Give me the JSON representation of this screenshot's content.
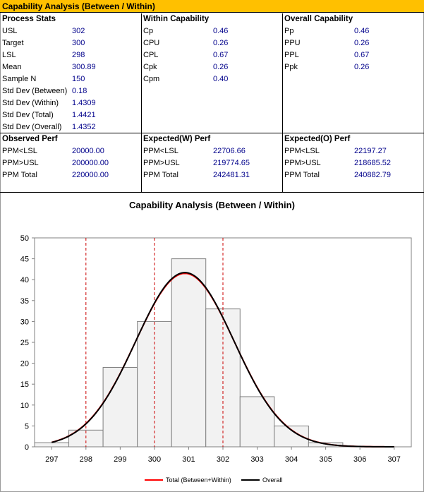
{
  "header": {
    "title": "Capability Analysis (Between / Within)"
  },
  "process_stats": {
    "heading": "Process Stats",
    "rows": [
      {
        "label": "USL",
        "value": "302"
      },
      {
        "label": "Target",
        "value": "300"
      },
      {
        "label": "LSL",
        "value": "298"
      },
      {
        "label": "Mean",
        "value": "300.89"
      },
      {
        "label": "Sample N",
        "value": "150"
      },
      {
        "label": "Std Dev (Between)",
        "value": "0.18"
      },
      {
        "label": "Std Dev (Within)",
        "value": "1.4309"
      },
      {
        "label": "Std Dev (Total)",
        "value": "1.4421"
      },
      {
        "label": "Std Dev (Overall)",
        "value": "1.4352"
      }
    ]
  },
  "within_capability": {
    "heading": "Within Capability",
    "rows": [
      {
        "label": "Cp",
        "value": "0.46"
      },
      {
        "label": "CPU",
        "value": "0.26"
      },
      {
        "label": "CPL",
        "value": "0.67"
      },
      {
        "label": "Cpk",
        "value": "0.26"
      },
      {
        "label": "Cpm",
        "value": "0.40"
      }
    ]
  },
  "overall_capability": {
    "heading": "Overall Capability",
    "rows": [
      {
        "label": "Pp",
        "value": "0.46"
      },
      {
        "label": "PPU",
        "value": "0.26"
      },
      {
        "label": "PPL",
        "value": "0.67"
      },
      {
        "label": "Ppk",
        "value": "0.26"
      }
    ]
  },
  "observed_perf": {
    "heading": "Observed Perf",
    "rows": [
      {
        "label": "PPM<LSL",
        "value": "20000.00"
      },
      {
        "label": "PPM>USL",
        "value": "200000.00"
      },
      {
        "label": "PPM Total",
        "value": "220000.00"
      }
    ]
  },
  "expected_w_perf": {
    "heading": "Expected(W) Perf",
    "rows": [
      {
        "label": "PPM<LSL",
        "value": "22706.66"
      },
      {
        "label": "PPM>USL",
        "value": "219774.65"
      },
      {
        "label": "PPM Total",
        "value": "242481.31"
      }
    ]
  },
  "expected_o_perf": {
    "heading": "Expected(O) Perf",
    "rows": [
      {
        "label": "PPM<LSL",
        "value": "22197.27"
      },
      {
        "label": "PPM>USL",
        "value": "218685.52"
      },
      {
        "label": "PPM Total",
        "value": "240882.79"
      }
    ]
  },
  "colors": {
    "title_bar": "#ffc000",
    "value_text": "#00008b",
    "bar_fill": "#f2f2f2",
    "bar_stroke": "#808080",
    "spec_line": "#cc0000",
    "total_curve": "#ff0000",
    "overall_curve": "#000000"
  },
  "chart_data": {
    "type": "bar",
    "title": "Capability Analysis (Between  / Within)",
    "xlabel": "",
    "ylabel": "",
    "xlim": [
      296.5,
      307.5
    ],
    "ylim": [
      0,
      50
    ],
    "x_ticks": [
      297,
      298,
      299,
      300,
      301,
      302,
      303,
      304,
      305,
      306,
      307
    ],
    "y_ticks": [
      0,
      5,
      10,
      15,
      20,
      25,
      30,
      35,
      40,
      45,
      50
    ],
    "bins": [
      {
        "from": 296.5,
        "to": 297.5,
        "count": 1
      },
      {
        "from": 297.5,
        "to": 298.5,
        "count": 4
      },
      {
        "from": 298.5,
        "to": 299.5,
        "count": 19
      },
      {
        "from": 299.5,
        "to": 300.5,
        "count": 30
      },
      {
        "from": 300.5,
        "to": 301.5,
        "count": 45
      },
      {
        "from": 301.5,
        "to": 302.5,
        "count": 33
      },
      {
        "from": 302.5,
        "to": 303.5,
        "count": 12
      },
      {
        "from": 303.5,
        "to": 304.5,
        "count": 5
      },
      {
        "from": 304.5,
        "to": 305.5,
        "count": 1
      },
      {
        "from": 305.5,
        "to": 306.5,
        "count": 0
      }
    ],
    "spec_lines": [
      298,
      300,
      302
    ],
    "curves": [
      {
        "name": "Total (Between+Within)",
        "mean": 300.89,
        "sd": 1.4421
      },
      {
        "name": "Overall",
        "mean": 300.89,
        "sd": 1.4352
      }
    ],
    "curve_range": [
      297,
      307
    ],
    "grid": false,
    "legend": "bottom"
  }
}
